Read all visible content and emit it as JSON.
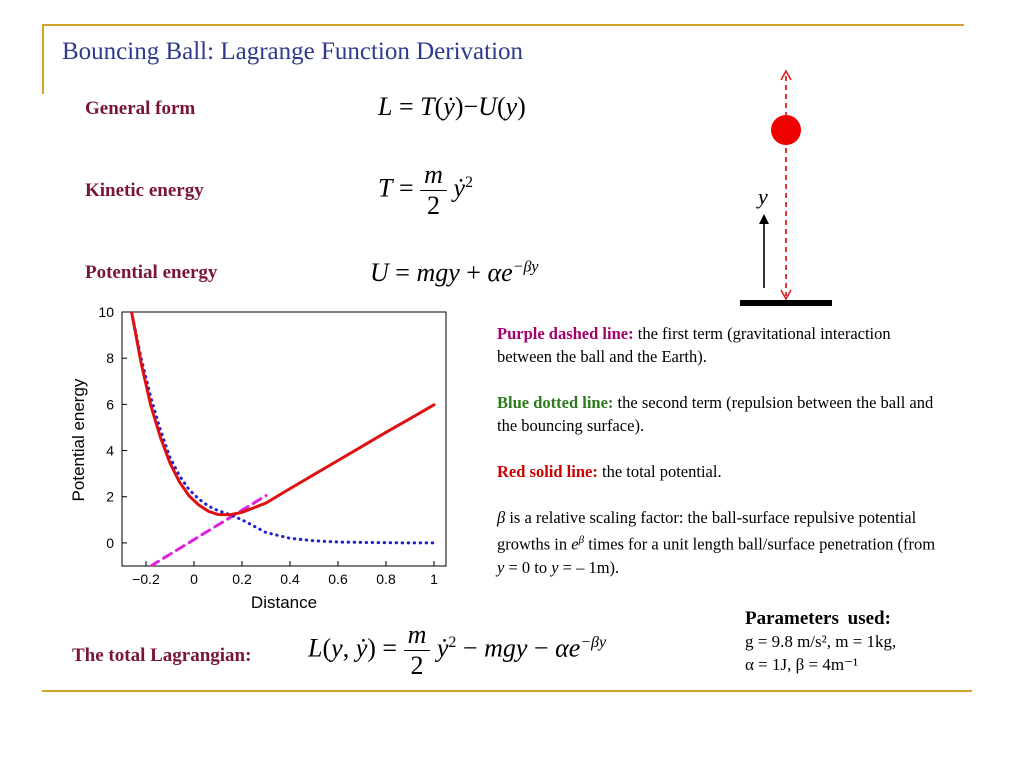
{
  "title": "Bouncing Ball: Lagrange Function Derivation",
  "labels": {
    "general_form": "General form",
    "kinetic_energy": "Kinetic energy",
    "potential_energy": "Potential energy",
    "total_lagrangian": "The total Lagrangian:"
  },
  "diagram": {
    "height_label": "y"
  },
  "description": {
    "purple_head": "Purple dashed line:",
    "purple_text": " the first term (gravitational interaction between the ball and the Earth).",
    "blue_head": "Blue dotted line:",
    "blue_text": " the second term (repulsion between the ball and the bouncing surface).",
    "red_head": "Red solid line:",
    "red_text": " the total potential.",
    "beta_sym": "β",
    "beta_text1": " is a relative scaling factor: the ball-surface repulsive potential growths in ",
    "beta_e": "e",
    "beta_sup": "β",
    "beta_text2": " times for a unit length ball/surface penetration (from ",
    "beta_y1": "y",
    "beta_text3": " = 0 to ",
    "beta_y2": "y",
    "beta_text4": " = – 1m)."
  },
  "parameters": {
    "heading": "Parameters used:",
    "line1": "g = 9.8 m/s², m = 1kg,",
    "line2": "α = 1J, β = 4m⁻¹"
  },
  "colors": {
    "title": "#2e3a8c",
    "label": "#7a1538",
    "rule": "#d6a32a",
    "red_curve": "#dd1111",
    "blue_curve": "#2222cc",
    "purple_curve": "#dd22dd",
    "ball": "#ee0000"
  },
  "chart_data": {
    "type": "line",
    "xlabel": "Distance",
    "ylabel": "Potential energy",
    "xlim": [
      -0.3,
      1.05
    ],
    "ylim": [
      -1,
      10
    ],
    "x_ticks": [
      "−0.2",
      "0",
      "0.2",
      "0.4",
      "0.6",
      "0.8",
      "1"
    ],
    "x_tick_values": [
      -0.2,
      0,
      0.2,
      0.4,
      0.6,
      0.8,
      1
    ],
    "y_ticks": [
      "0",
      "2",
      "4",
      "6",
      "8",
      "10"
    ],
    "y_tick_values": [
      0,
      2,
      4,
      6,
      8,
      10
    ],
    "series": [
      {
        "style": "solid",
        "color": "#dd1111",
        "x": [
          -0.26,
          -0.22,
          -0.18,
          -0.14,
          -0.1,
          -0.06,
          -0.02,
          0.02,
          0.06,
          0.1,
          0.15,
          0.2,
          0.3,
          0.4,
          0.5,
          0.6,
          0.7,
          0.8,
          0.9,
          1.0
        ],
        "y": [
          10.0,
          7.78,
          5.95,
          4.58,
          3.46,
          2.63,
          2.03,
          1.64,
          1.37,
          1.23,
          1.22,
          1.32,
          1.73,
          2.35,
          2.96,
          3.57,
          4.18,
          4.79,
          5.38,
          5.98
        ]
      },
      {
        "style": "dotted",
        "color": "#2222cc",
        "x": [
          -0.26,
          -0.22,
          -0.18,
          -0.14,
          -0.1,
          -0.06,
          -0.02,
          0.02,
          0.06,
          0.1,
          0.15,
          0.2,
          0.3,
          0.4,
          0.5,
          0.6,
          0.7,
          0.8,
          0.9,
          1.0
        ],
        "y": [
          10.0,
          8.0,
          6.3,
          4.9,
          3.7,
          2.9,
          2.3,
          1.9,
          1.6,
          1.4,
          1.22,
          1.0,
          0.45,
          0.2,
          0.09,
          0.04,
          0.02,
          0.01,
          0.0,
          0.0
        ]
      },
      {
        "style": "dashed",
        "color": "#dd22dd",
        "x": [
          -0.18,
          0.3
        ],
        "y": [
          -1.0,
          2.05
        ]
      }
    ]
  }
}
